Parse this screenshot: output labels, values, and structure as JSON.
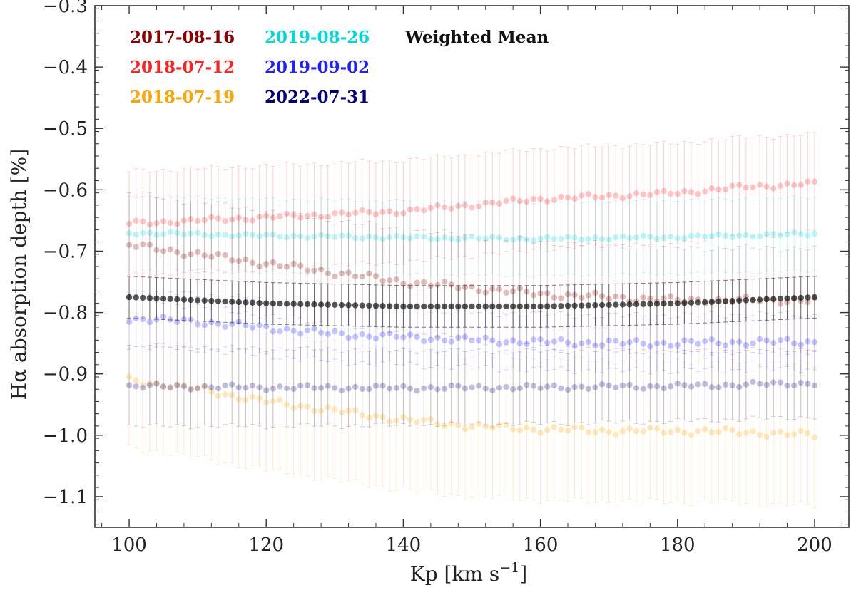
{
  "chart_data": {
    "type": "scatter",
    "title": "",
    "xlabel": "Kp [km s",
    "xlabel_sup": "−1",
    "xlabel_close": "]",
    "ylabel": "Hα absorption depth [%]",
    "xlim": [
      95,
      205
    ],
    "ylim": [
      -1.15,
      -0.3
    ],
    "y_inverted": true,
    "grid": false,
    "legend_position": "top-left",
    "x_ticks": [
      100,
      120,
      140,
      160,
      180,
      200
    ],
    "x_tick_labels": [
      "100",
      "120",
      "140",
      "160",
      "180",
      "200"
    ],
    "y_ticks": [
      -0.3,
      -0.4,
      -0.5,
      -0.6,
      -0.7,
      -0.8,
      -0.9,
      -1.0,
      -1.1
    ],
    "y_tick_labels": [
      "−0.3",
      "−0.4",
      "−0.5",
      "−0.6",
      "−0.7",
      "−0.8",
      "−0.9",
      "−1.0",
      "−1.1"
    ],
    "x_range": {
      "start": 100,
      "end": 200,
      "step": 1
    },
    "series": [
      {
        "name": "2017-08-16",
        "color": "#8b0000",
        "anchors": [
          [
            100,
            -0.69
          ],
          [
            110,
            -0.705
          ],
          [
            120,
            -0.72
          ],
          [
            130,
            -0.735
          ],
          [
            140,
            -0.75
          ],
          [
            150,
            -0.76
          ],
          [
            160,
            -0.77
          ],
          [
            170,
            -0.775
          ],
          [
            180,
            -0.78
          ],
          [
            190,
            -0.78
          ],
          [
            200,
            -0.78
          ]
        ],
        "err_anchors": [
          [
            100,
            0.085
          ],
          [
            200,
            0.085
          ]
        ],
        "noise": 0.004
      },
      {
        "name": "2018-07-12",
        "color": "#ff2020",
        "anchors": [
          [
            100,
            -0.655
          ],
          [
            110,
            -0.65
          ],
          [
            120,
            -0.645
          ],
          [
            130,
            -0.64
          ],
          [
            140,
            -0.635
          ],
          [
            150,
            -0.625
          ],
          [
            160,
            -0.615
          ],
          [
            170,
            -0.61
          ],
          [
            180,
            -0.605
          ],
          [
            190,
            -0.595
          ],
          [
            200,
            -0.59
          ]
        ],
        "err_anchors": [
          [
            100,
            0.085
          ],
          [
            200,
            0.08
          ]
        ],
        "noise": 0.003
      },
      {
        "name": "2018-07-19",
        "color": "#ffa500",
        "anchors": [
          [
            100,
            -0.91
          ],
          [
            110,
            -0.925
          ],
          [
            120,
            -0.945
          ],
          [
            130,
            -0.96
          ],
          [
            140,
            -0.975
          ],
          [
            150,
            -0.985
          ],
          [
            160,
            -0.99
          ],
          [
            170,
            -0.993
          ],
          [
            180,
            -0.993
          ],
          [
            190,
            -0.995
          ],
          [
            200,
            -1.0
          ]
        ],
        "err_anchors": [
          [
            100,
            0.11
          ],
          [
            150,
            0.115
          ],
          [
            200,
            0.115
          ]
        ],
        "noise": 0.004
      },
      {
        "name": "2019-08-26",
        "color": "#00d8d8",
        "anchors": [
          [
            100,
            -0.67
          ],
          [
            120,
            -0.675
          ],
          [
            140,
            -0.678
          ],
          [
            160,
            -0.68
          ],
          [
            180,
            -0.677
          ],
          [
            200,
            -0.672
          ]
        ],
        "err_anchors": [
          [
            100,
            0.06
          ],
          [
            200,
            0.06
          ]
        ],
        "noise": 0.002
      },
      {
        "name": "2019-09-02",
        "color": "#2020ff",
        "anchors": [
          [
            100,
            -0.81
          ],
          [
            110,
            -0.815
          ],
          [
            120,
            -0.825
          ],
          [
            130,
            -0.835
          ],
          [
            140,
            -0.84
          ],
          [
            150,
            -0.845
          ],
          [
            160,
            -0.848
          ],
          [
            170,
            -0.85
          ],
          [
            180,
            -0.85
          ],
          [
            190,
            -0.848
          ],
          [
            200,
            -0.848
          ]
        ],
        "err_anchors": [
          [
            100,
            0.045
          ],
          [
            200,
            0.045
          ]
        ],
        "noise": 0.004
      },
      {
        "name": "2022-07-31",
        "color": "#00007f",
        "anchors": [
          [
            100,
            -0.92
          ],
          [
            120,
            -0.922
          ],
          [
            140,
            -0.923
          ],
          [
            160,
            -0.922
          ],
          [
            180,
            -0.92
          ],
          [
            200,
            -0.915
          ]
        ],
        "err_anchors": [
          [
            100,
            0.065
          ],
          [
            200,
            0.055
          ]
        ],
        "noise": 0.003
      },
      {
        "name": "Weighted Mean",
        "color": "#111111",
        "anchors": [
          [
            100,
            -0.775
          ],
          [
            120,
            -0.785
          ],
          [
            140,
            -0.79
          ],
          [
            160,
            -0.79
          ],
          [
            180,
            -0.785
          ],
          [
            200,
            -0.775
          ]
        ],
        "err_anchors": [
          [
            100,
            0.034
          ],
          [
            200,
            0.034
          ]
        ],
        "noise": 0.0
      }
    ]
  }
}
